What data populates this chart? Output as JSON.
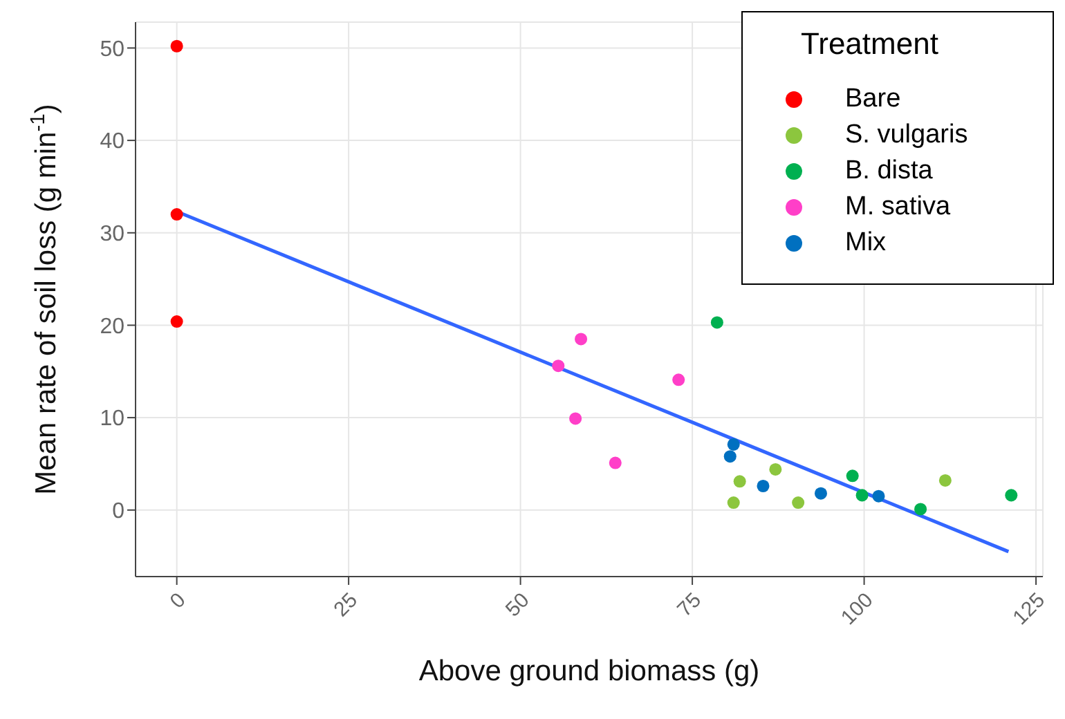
{
  "chart_data": {
    "type": "scatter",
    "xlabel": "Above ground biomass (g)",
    "ylabel": "Mean rate of soil loss (g min$^{-1}$)",
    "legend_title": "Treatment",
    "xlim": [
      -6,
      126
    ],
    "xticks": [
      0,
      25,
      50,
      75,
      100,
      125
    ],
    "ylim": [
      -7.2,
      52.8
    ],
    "yticks": [
      0,
      10,
      20,
      30,
      40,
      50
    ],
    "grid": true,
    "legend": "top right",
    "marker": "circle",
    "series": [
      {
        "name": "Bare",
        "color": "#ff0000",
        "x": [
          0,
          0,
          0
        ],
        "values": [
          50.2,
          32,
          20.4
        ]
      },
      {
        "name": "S. vulgaris",
        "color": "#8cc63e",
        "x": [
          81.9,
          81.0,
          87.1,
          90.4,
          111.8
        ],
        "values": [
          3.1,
          0.8,
          4.4,
          0.8,
          3.2
        ]
      },
      {
        "name": "B. dista",
        "color": "#00b050",
        "x": [
          78.6,
          98.3,
          99.7,
          108.2,
          121.4
        ],
        "values": [
          20.3,
          3.7,
          1.6,
          0.1,
          1.6
        ]
      },
      {
        "name": "M. sativa",
        "color": "#ff3fc8",
        "x": [
          55.5,
          58.8,
          58.0,
          63.8,
          73.0
        ],
        "values": [
          15.6,
          18.5,
          9.9,
          5.1,
          14.1
        ]
      },
      {
        "name": "Mix",
        "color": "#0070c0",
        "x": [
          81.0,
          80.5,
          85.3,
          93.7,
          102.1
        ],
        "values": [
          7.1,
          5.8,
          2.6,
          1.8,
          1.5
        ]
      },
      {
        "type": "line",
        "marker": "none",
        "color": "#3366ff",
        "x": [
          0,
          121
        ],
        "values": [
          32.3,
          -4.5
        ]
      }
    ]
  }
}
